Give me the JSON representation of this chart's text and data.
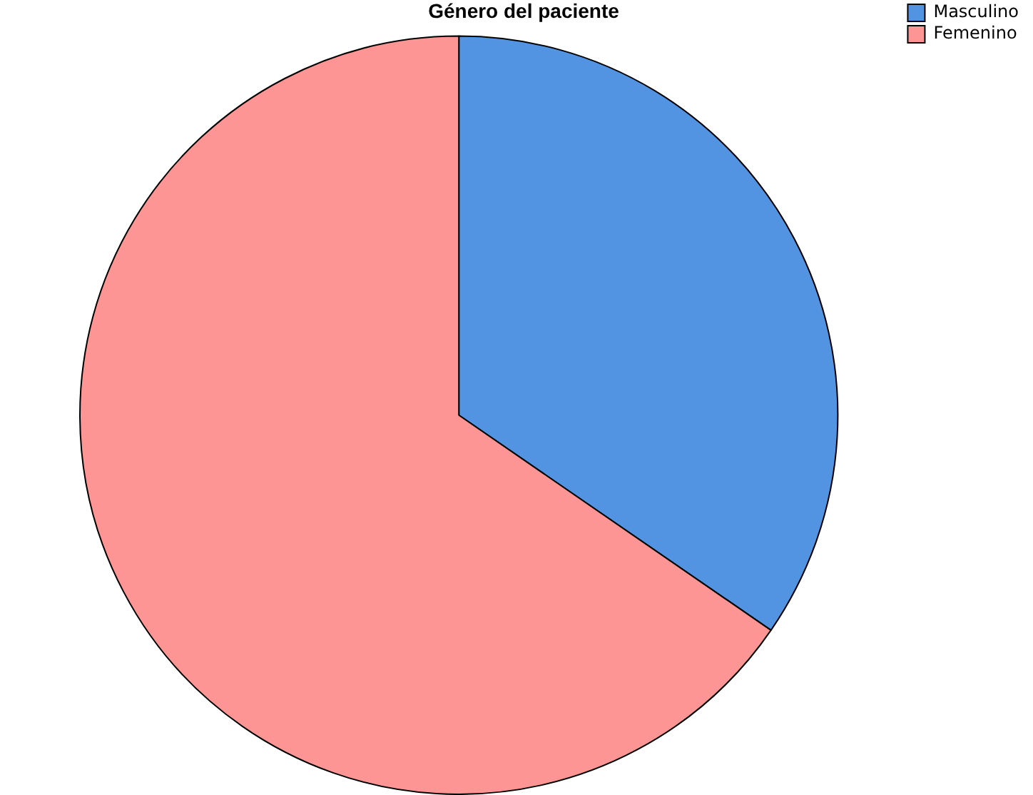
{
  "chart_data": {
    "type": "pie",
    "title": "Género del paciente",
    "categories": [
      "Masculino",
      "Femenino"
    ],
    "values": [
      34.6,
      65.4
    ],
    "colors": [
      "#5294e2",
      "#fd9595"
    ],
    "legend": "top right"
  }
}
